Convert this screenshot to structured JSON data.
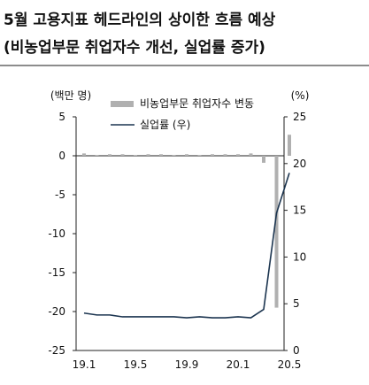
{
  "heading": {
    "line1": "5월 고용지표 헤드라인의 상이한 흐름 예상",
    "line2": "(비농업부문 취업자수 개선, 실업률 증가)"
  },
  "chart_data": {
    "type": "bar+line",
    "left_axis": {
      "unit_label": "(백만 명)",
      "ylim": [
        -25,
        5
      ],
      "ticks": [
        5,
        0,
        -5,
        -10,
        -15,
        -20,
        -25
      ]
    },
    "right_axis": {
      "unit_label": "(%)",
      "ylim": [
        0,
        25
      ],
      "ticks": [
        25,
        20,
        15,
        10,
        5,
        0
      ]
    },
    "x_tick_labels": [
      "19.1",
      "19.5",
      "19.9",
      "20.1",
      "20.5"
    ],
    "x_tick_months": [
      1,
      5,
      9,
      13,
      17
    ],
    "legend_position": "top-center",
    "grid": false,
    "series": [
      {
        "name": "비농업부문 취업자수 변동",
        "type": "bar",
        "axis": "left",
        "color": "#b0b0b0",
        "x_months": [
          1,
          2,
          3,
          4,
          5,
          6,
          7,
          8,
          9,
          10,
          11,
          12,
          13,
          14,
          15,
          16,
          17
        ],
        "values": [
          0.3,
          0.1,
          0.2,
          0.2,
          0.1,
          0.2,
          0.2,
          0.1,
          0.2,
          0.1,
          0.2,
          0.2,
          0.2,
          0.3,
          -0.9,
          -19.5,
          2.7
        ]
      },
      {
        "name": "실업률 (우)",
        "type": "line",
        "axis": "right",
        "color": "#1c3550",
        "x_months": [
          1,
          2,
          3,
          4,
          5,
          6,
          7,
          8,
          9,
          10,
          11,
          12,
          13,
          14,
          15,
          16,
          17
        ],
        "values": [
          4.0,
          3.8,
          3.8,
          3.6,
          3.6,
          3.6,
          3.6,
          3.6,
          3.5,
          3.6,
          3.5,
          3.5,
          3.6,
          3.5,
          4.4,
          14.7,
          19.0
        ]
      }
    ]
  }
}
